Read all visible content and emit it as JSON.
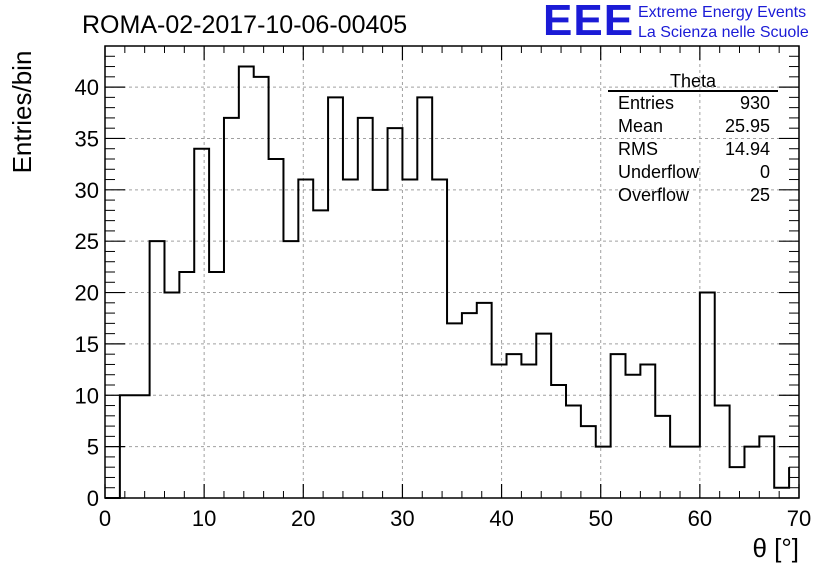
{
  "title": "ROMA-02-2017-10-06-00405",
  "logo": {
    "mark": "EEE",
    "line1": "Extreme Energy Events",
    "line2": "La Scienza nelle Scuole",
    "color": "#1b1bd6"
  },
  "stats": {
    "title": "Theta",
    "rows": [
      {
        "label": "Entries",
        "value": "930"
      },
      {
        "label": "Mean",
        "value": "25.95"
      },
      {
        "label": "RMS",
        "value": "14.94"
      },
      {
        "label": "Underflow",
        "value": "0"
      },
      {
        "label": "Overflow",
        "value": "25"
      }
    ]
  },
  "chart_data": {
    "type": "histogram",
    "title": "ROMA-02-2017-10-06-00405",
    "xlabel": "θ [°]",
    "ylabel": "Entries/bin",
    "xlim": [
      0,
      70
    ],
    "ylim": [
      0,
      44
    ],
    "xticks": [
      0,
      10,
      20,
      30,
      40,
      50,
      60,
      70
    ],
    "yticks": [
      0,
      5,
      10,
      15,
      20,
      25,
      30,
      35,
      40
    ],
    "grid": true,
    "line_color": "#000000",
    "bin_edges": [
      0,
      1.5,
      3,
      4.5,
      6,
      7.5,
      9,
      10.5,
      12,
      13.5,
      15,
      16.5,
      18,
      19.5,
      21,
      22.5,
      24,
      25.5,
      27,
      28.5,
      30,
      31.5,
      33,
      34.5,
      36,
      37.5,
      39,
      40.5,
      42,
      43.5,
      45,
      46.5,
      48,
      49.5,
      51,
      52.5,
      54,
      55.5,
      57,
      58.5,
      60,
      61.5,
      63,
      64.5,
      66,
      67.5,
      69
    ],
    "values": [
      0,
      10,
      10,
      25,
      20,
      22,
      34,
      22,
      37,
      42,
      41,
      33,
      25,
      31,
      28,
      39,
      31,
      37,
      30,
      36,
      31,
      39,
      31,
      17,
      18,
      19,
      13,
      14,
      13,
      16,
      11,
      9,
      7,
      5,
      14,
      12,
      13,
      8,
      5,
      5,
      20,
      9,
      3,
      5,
      6,
      1,
      3
    ]
  }
}
